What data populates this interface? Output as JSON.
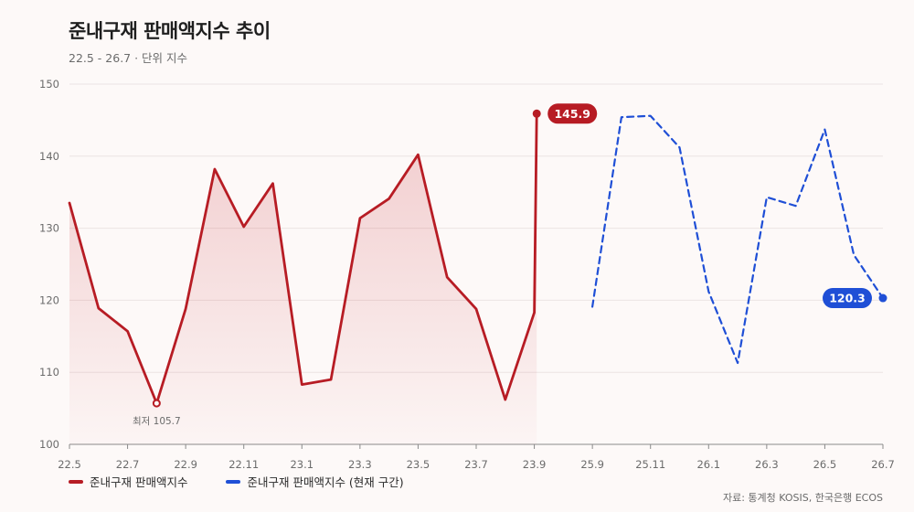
{
  "chart_data": {
    "type": "line",
    "title": "준내구재 판매액지수 추이",
    "subtitle": "22.5 - 26.7 · 단위 지수",
    "ylim": [
      100,
      150
    ],
    "y_ticks": [
      100,
      110,
      120,
      130,
      140,
      150
    ],
    "x_ticks": [
      "22.5",
      "22.7",
      "22.9",
      "22.11",
      "23.1",
      "23.3",
      "23.5",
      "23.7",
      "23.9",
      "25.9",
      "25.11",
      "26.1",
      "26.3",
      "26.5",
      "26.7"
    ],
    "grid": true,
    "legend_position": "bottom-left",
    "series": [
      {
        "name": "준내구재 판매액지수",
        "color": "#b71c24",
        "style": "solid",
        "area": true,
        "points": [
          [
            "22.5",
            133.5
          ],
          [
            "22.6",
            118.9
          ],
          [
            "22.7",
            115.7
          ],
          [
            "22.8",
            105.7
          ],
          [
            "22.9",
            118.8
          ],
          [
            "22.10",
            138.2
          ],
          [
            "22.11",
            130.2
          ],
          [
            "22.12",
            136.2
          ],
          [
            "23.1",
            108.3
          ],
          [
            "23.2",
            109.0
          ],
          [
            "23.3",
            131.4
          ],
          [
            "23.4",
            134.1
          ],
          [
            "23.5",
            140.2
          ],
          [
            "23.6",
            123.2
          ],
          [
            "23.7",
            118.8
          ],
          [
            "23.8",
            106.2
          ],
          [
            "23.9",
            118.3
          ],
          [
            "23.10",
            145.9
          ]
        ]
      },
      {
        "name": "준내구재 판매액지수 (현재 구간)",
        "color": "#1f4fd6",
        "style": "dashed",
        "area": false,
        "points": [
          [
            "25.9",
            119.1
          ],
          [
            "25.10",
            145.4
          ],
          [
            "25.11",
            145.6
          ],
          [
            "25.12",
            141.2
          ],
          [
            "26.1",
            121.2
          ],
          [
            "26.2",
            111.3
          ],
          [
            "26.3",
            134.3
          ],
          [
            "26.4",
            133.1
          ],
          [
            "26.5",
            143.7
          ],
          [
            "26.6",
            126.3
          ],
          [
            "26.7",
            120.3
          ]
        ]
      }
    ],
    "annotations": [
      {
        "label": "최저 105.7",
        "series": 0,
        "point": "22.8"
      },
      {
        "label": "145.9",
        "series": 0,
        "point": "23.10",
        "badge": true
      },
      {
        "label": "120.3",
        "series": 1,
        "point": "26.7",
        "badge": true
      }
    ],
    "source": "자료: 통계청 KOSIS, 한국은행 ECOS"
  }
}
